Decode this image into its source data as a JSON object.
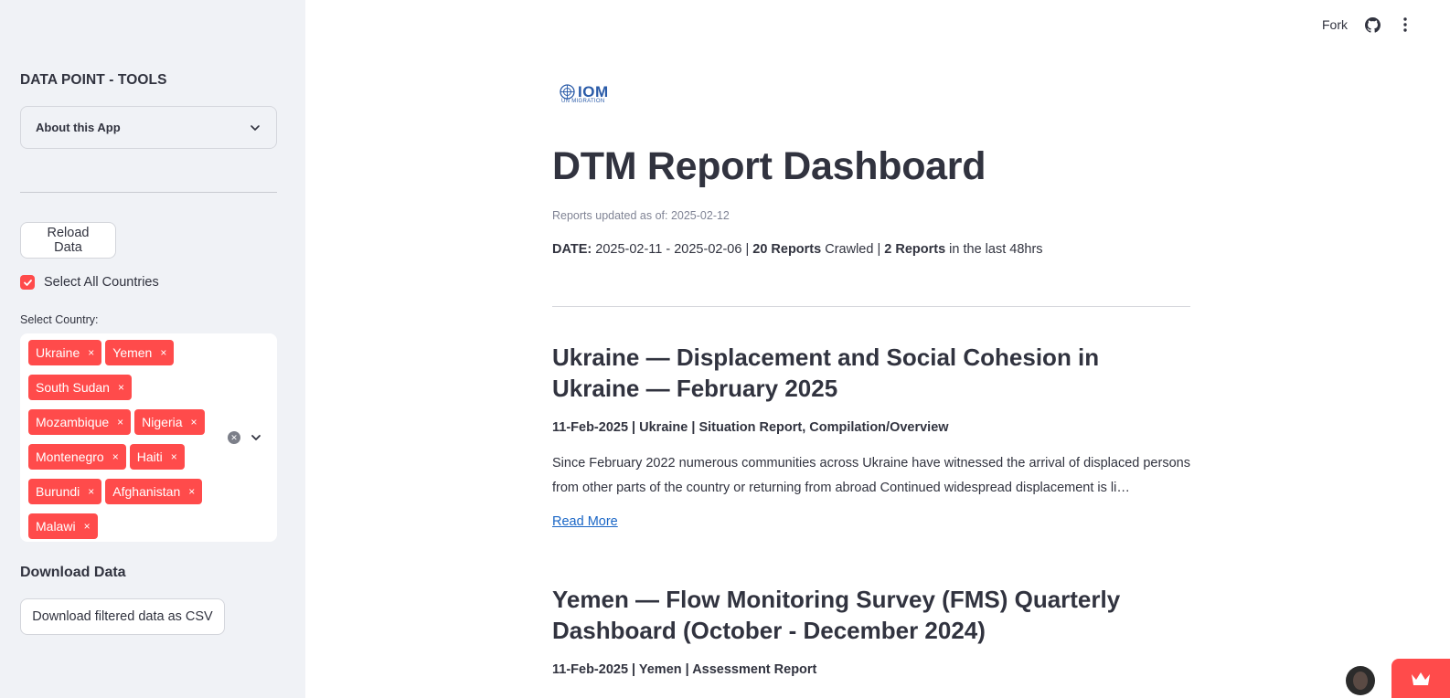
{
  "sidebar": {
    "title": "DATA POINT - TOOLS",
    "expander_label": "About this App",
    "reload_label": "Reload Data",
    "select_all_label": "Select All Countries",
    "select_all_checked": true,
    "country_field_label": "Select Country:",
    "selected_countries": [
      "Ukraine",
      "Yemen",
      "South Sudan",
      "Mozambique",
      "Nigeria",
      "Montenegro",
      "Haiti",
      "Burundi",
      "Afghanistan",
      "Malawi"
    ],
    "tag_remove_glyph": "×",
    "download_heading": "Download Data",
    "download_label": "Download filtered data as CSV"
  },
  "toolbar": {
    "fork_label": "Fork",
    "github_icon": "github-icon",
    "menu_icon": "kebab-menu-icon"
  },
  "header": {
    "logo_text": "IOM",
    "logo_subtext": "UN MIGRATION",
    "title": "DTM Report Dashboard",
    "updated_caption": "Reports updated as of: 2025-02-12",
    "summary": {
      "date_label": "DATE:",
      "date_range": " 2025-02-11 - 2025-02-06 | ",
      "reports_count": "20 Reports",
      "crawled_text": " Crawled | ",
      "recent_count": "2 Reports",
      "recent_text": " in the last 48hrs"
    }
  },
  "reports": [
    {
      "title": "Ukraine — Displacement and Social Cohesion in Ukraine — February 2025",
      "meta": "11-Feb-2025 | Ukraine | Situation Report, Compilation/Overview",
      "summary": "Since February 2022 numerous communities across Ukraine have witnessed the arrival of displaced persons from other parts of the country or returning from abroad Continued widespread displacement is li…",
      "link_label": "Read More"
    },
    {
      "title": "Yemen — Flow Monitoring Survey (FMS) Quarterly Dashboard (October - December 2024)",
      "meta": "11-Feb-2025 | Yemen | Assessment Report"
    }
  ],
  "colors": {
    "accent": "#ff4b4b",
    "sidebar_bg": "#f0f2f6",
    "text": "#31333f",
    "link": "#1a66c6",
    "logo_blue": "#2a5ba8"
  }
}
